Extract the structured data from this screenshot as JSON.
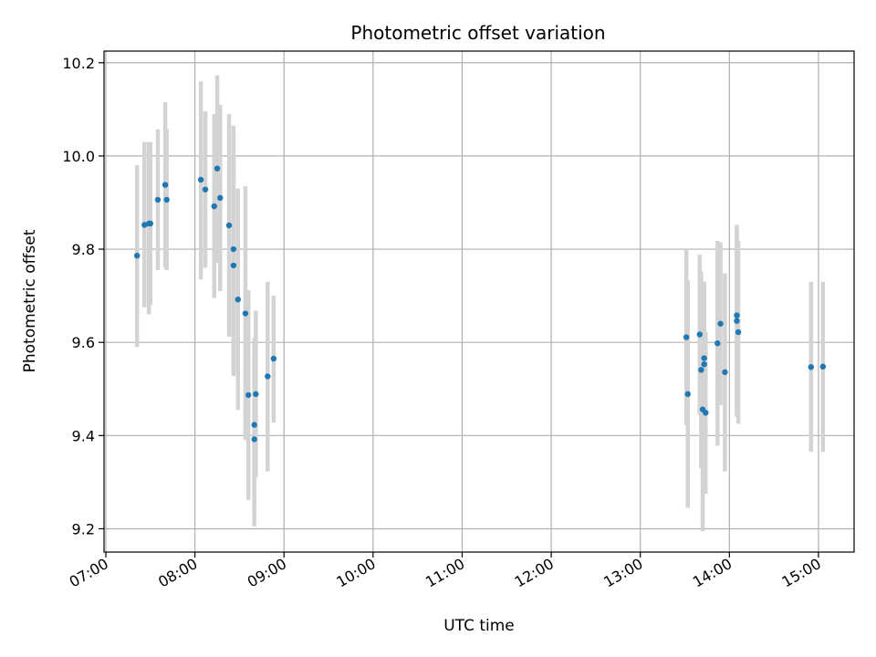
{
  "chart_data": {
    "type": "scatter",
    "title": "Photometric offset variation",
    "xlabel": "UTC time",
    "ylabel": "Photometric offset",
    "x_unit": "hours (UTC)",
    "xlim": [
      "07:00",
      "15:24"
    ],
    "ylim": [
      9.15,
      10.225
    ],
    "x_ticks": [
      "07:00",
      "08:00",
      "09:00",
      "10:00",
      "11:00",
      "12:00",
      "13:00",
      "14:00",
      "15:00"
    ],
    "y_ticks": [
      9.2,
      9.4,
      9.6,
      9.8,
      10.0,
      10.2
    ],
    "y_tick_labels": [
      "9.2",
      "9.4",
      "9.6",
      "9.8",
      "10.0",
      "10.2"
    ],
    "grid": true,
    "marker_color": "#1f77b4",
    "errorbar_color": "#d3d3d3",
    "points": [
      {
        "x": "07:21",
        "y": 9.786,
        "lo": 9.59,
        "hi": 9.98
      },
      {
        "x": "07:26",
        "y": 9.852,
        "lo": 9.675,
        "hi": 10.03
      },
      {
        "x": "07:29",
        "y": 9.855,
        "lo": 9.66,
        "hi": 10.03
      },
      {
        "x": "07:30",
        "y": 9.855,
        "lo": 9.68,
        "hi": 10.03
      },
      {
        "x": "07:35",
        "y": 9.906,
        "lo": 9.755,
        "hi": 10.057
      },
      {
        "x": "07:40",
        "y": 9.938,
        "lo": 9.76,
        "hi": 10.115
      },
      {
        "x": "07:41",
        "y": 9.906,
        "lo": 9.755,
        "hi": 10.057
      },
      {
        "x": "08:04",
        "y": 9.949,
        "lo": 9.735,
        "hi": 10.16
      },
      {
        "x": "08:07",
        "y": 9.928,
        "lo": 9.76,
        "hi": 10.096
      },
      {
        "x": "08:13",
        "y": 9.892,
        "lo": 9.695,
        "hi": 10.09
      },
      {
        "x": "08:15",
        "y": 9.973,
        "lo": 9.77,
        "hi": 10.173
      },
      {
        "x": "08:17",
        "y": 9.91,
        "lo": 9.71,
        "hi": 10.11
      },
      {
        "x": "08:23",
        "y": 9.851,
        "lo": 9.612,
        "hi": 10.09
      },
      {
        "x": "08:26",
        "y": 9.8,
        "lo": 9.535,
        "hi": 10.065
      },
      {
        "x": "08:26",
        "y": 9.765,
        "lo": 9.528,
        "hi": 10.0
      },
      {
        "x": "08:29",
        "y": 9.692,
        "lo": 9.455,
        "hi": 9.93
      },
      {
        "x": "08:34",
        "y": 9.662,
        "lo": 9.39,
        "hi": 9.935
      },
      {
        "x": "08:36",
        "y": 9.487,
        "lo": 9.262,
        "hi": 9.712
      },
      {
        "x": "08:40",
        "y": 9.392,
        "lo": 9.205,
        "hi": 9.58
      },
      {
        "x": "08:40",
        "y": 9.423,
        "lo": 9.235,
        "hi": 9.61
      },
      {
        "x": "08:41",
        "y": 9.489,
        "lo": 9.31,
        "hi": 9.668
      },
      {
        "x": "08:49",
        "y": 9.527,
        "lo": 9.323,
        "hi": 9.73
      },
      {
        "x": "08:53",
        "y": 9.565,
        "lo": 9.428,
        "hi": 9.7
      },
      {
        "x": "13:31",
        "y": 9.611,
        "lo": 9.422,
        "hi": 9.8
      },
      {
        "x": "13:32",
        "y": 9.489,
        "lo": 9.245,
        "hi": 9.733
      },
      {
        "x": "13:40",
        "y": 9.617,
        "lo": 9.445,
        "hi": 9.788
      },
      {
        "x": "13:41",
        "y": 9.541,
        "lo": 9.33,
        "hi": 9.752
      },
      {
        "x": "13:42",
        "y": 9.456,
        "lo": 9.195,
        "hi": 9.718
      },
      {
        "x": "13:43",
        "y": 9.566,
        "lo": 9.405,
        "hi": 9.728
      },
      {
        "x": "13:43",
        "y": 9.553,
        "lo": 9.375,
        "hi": 9.73
      },
      {
        "x": "13:44",
        "y": 9.449,
        "lo": 9.275,
        "hi": 9.622
      },
      {
        "x": "13:52",
        "y": 9.598,
        "lo": 9.378,
        "hi": 9.818
      },
      {
        "x": "13:54",
        "y": 9.64,
        "lo": 9.465,
        "hi": 9.815
      },
      {
        "x": "13:57",
        "y": 9.536,
        "lo": 9.323,
        "hi": 9.748
      },
      {
        "x": "14:05",
        "y": 9.658,
        "lo": 9.468,
        "hi": 9.848
      },
      {
        "x": "14:05",
        "y": 9.646,
        "lo": 9.44,
        "hi": 9.852
      },
      {
        "x": "14:06",
        "y": 9.622,
        "lo": 9.425,
        "hi": 9.818
      },
      {
        "x": "14:55",
        "y": 9.547,
        "lo": 9.365,
        "hi": 9.73
      },
      {
        "x": "15:03",
        "y": 9.548,
        "lo": 9.365,
        "hi": 9.73
      }
    ]
  }
}
